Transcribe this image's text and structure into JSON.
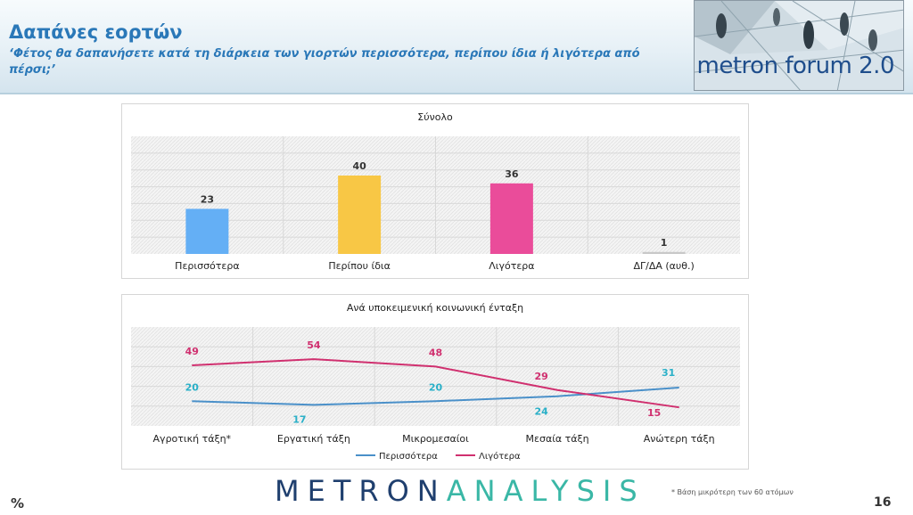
{
  "header": {
    "title": "Δαπάνες εορτών",
    "subtitle": "‘Φέτος θα δαπανήσετε κατά τη διάρκεια των γιορτών περισσότερα, περίπου ίδια ή λιγότερα από πέρσι;’",
    "brand_text": "metron forum 2.0"
  },
  "chart_data": [
    {
      "type": "bar",
      "title": "Σύνολο",
      "categories": [
        "Περισσότερα",
        "Περίπου ίδια",
        "Λιγότερα",
        "ΔΓ/ΔΑ (αυθ.)"
      ],
      "values": [
        23,
        40,
        36,
        1
      ],
      "colors": [
        "#64aff5",
        "#f8c745",
        "#ea4c9a",
        "#c8c8c8"
      ],
      "ylim": [
        0,
        60
      ],
      "grid": true,
      "xlabel": "",
      "ylabel": ""
    },
    {
      "type": "line",
      "title": "Ανά υποκειμενική κοινωνική ένταξη",
      "categories": [
        "Αγροτική τάξη*",
        "Εργατική τάξη",
        "Μικρομεσαίοι",
        "Μεσαία τάξη",
        "Ανώτερη τάξη"
      ],
      "series": [
        {
          "name": "Περισσότερα",
          "values": [
            20,
            17,
            20,
            24,
            31
          ],
          "color": "#4a90c9",
          "label_color": "#2ab0c8"
        },
        {
          "name": "Λιγότερα",
          "values": [
            49,
            54,
            48,
            29,
            15
          ],
          "color": "#d0306f",
          "label_color": "#d0306f"
        }
      ],
      "ylim": [
        0,
        80
      ],
      "grid": true,
      "legend": "bottom",
      "xlabel": "",
      "ylabel": ""
    }
  ],
  "footer": {
    "percent_sign": "%",
    "logo_part1": "METRON",
    "logo_part2": "ANALYSIS",
    "footnote": "*  Βάση μικρότερη των 60 ατόμων",
    "page_number": "16"
  }
}
